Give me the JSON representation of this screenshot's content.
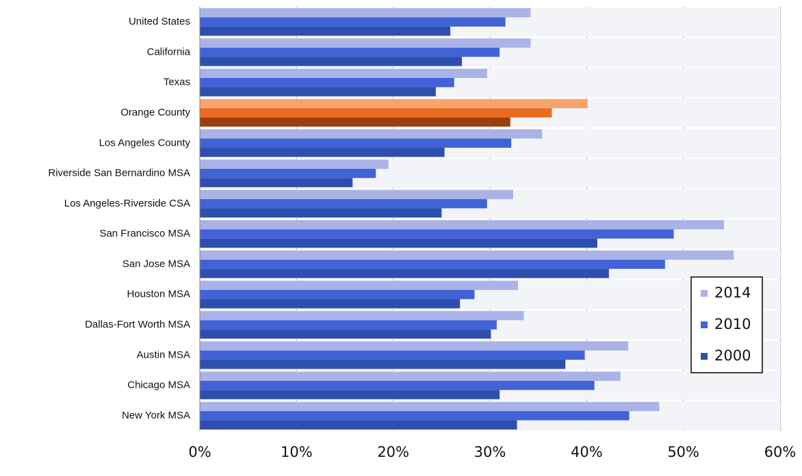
{
  "chart_data": {
    "type": "hbar",
    "categories": [
      "United States",
      "California",
      "Texas",
      "Orange County",
      "Los Angeles County",
      "Riverside San Bernardino MSA",
      "Los Angeles-Riverside CSA",
      "San Francisco MSA",
      "San Jose MSA",
      "Houston MSA",
      "Dallas-Fort Worth MSA",
      "Austin MSA",
      "Chicago MSA",
      "New York MSA"
    ],
    "series": [
      {
        "name": "2014",
        "color": "#a9b3e8",
        "colors": [
          "#a9b3e8",
          "#a9b3e8",
          "#a9b3e8",
          "#f6a46c",
          "#a9b3e8",
          "#a9b3e8",
          "#a9b3e8",
          "#a9b3e8",
          "#a9b3e8",
          "#a9b3e8",
          "#a9b3e8",
          "#a9b3e8",
          "#a9b3e8",
          "#a9b3e8"
        ],
        "values": [
          34.2,
          34.2,
          29.7,
          40.1,
          35.4,
          19.5,
          32.4,
          54.2,
          55.2,
          32.9,
          33.5,
          44.3,
          43.5,
          47.5
        ]
      },
      {
        "name": "2010",
        "color": "#4263d6",
        "colors": [
          "#4263d6",
          "#4263d6",
          "#4263d6",
          "#ea6a1e",
          "#4263d6",
          "#4263d6",
          "#4263d6",
          "#4263d6",
          "#4263d6",
          "#4263d6",
          "#4263d6",
          "#4263d6",
          "#4263d6",
          "#4263d6"
        ],
        "values": [
          31.6,
          31.0,
          26.3,
          36.4,
          32.2,
          18.2,
          29.7,
          49.0,
          48.1,
          28.4,
          30.7,
          39.8,
          40.8,
          44.4
        ]
      },
      {
        "name": "2000",
        "color": "#2e4fae",
        "colors": [
          "#2e4fae",
          "#2e4fae",
          "#2e4fae",
          "#9c3f0c",
          "#2e4fae",
          "#2e4fae",
          "#2e4fae",
          "#2e4fae",
          "#2e4fae",
          "#2e4fae",
          "#2e4fae",
          "#2e4fae",
          "#2e4fae",
          "#2e4fae"
        ],
        "values": [
          25.9,
          27.1,
          24.4,
          32.1,
          25.3,
          15.8,
          25.0,
          41.1,
          42.3,
          26.9,
          30.1,
          37.8,
          31.0,
          32.8
        ]
      }
    ],
    "xlim": [
      0,
      60
    ],
    "xticks": [
      {
        "value": 0,
        "label": "0%"
      },
      {
        "value": 10,
        "label": "10%"
      },
      {
        "value": 20,
        "label": "20%"
      },
      {
        "value": 30,
        "label": "30%"
      },
      {
        "value": 40,
        "label": "40%"
      },
      {
        "value": 50,
        "label": "50%"
      },
      {
        "value": 60,
        "label": "60%"
      }
    ],
    "grid": true,
    "legend": "right"
  }
}
